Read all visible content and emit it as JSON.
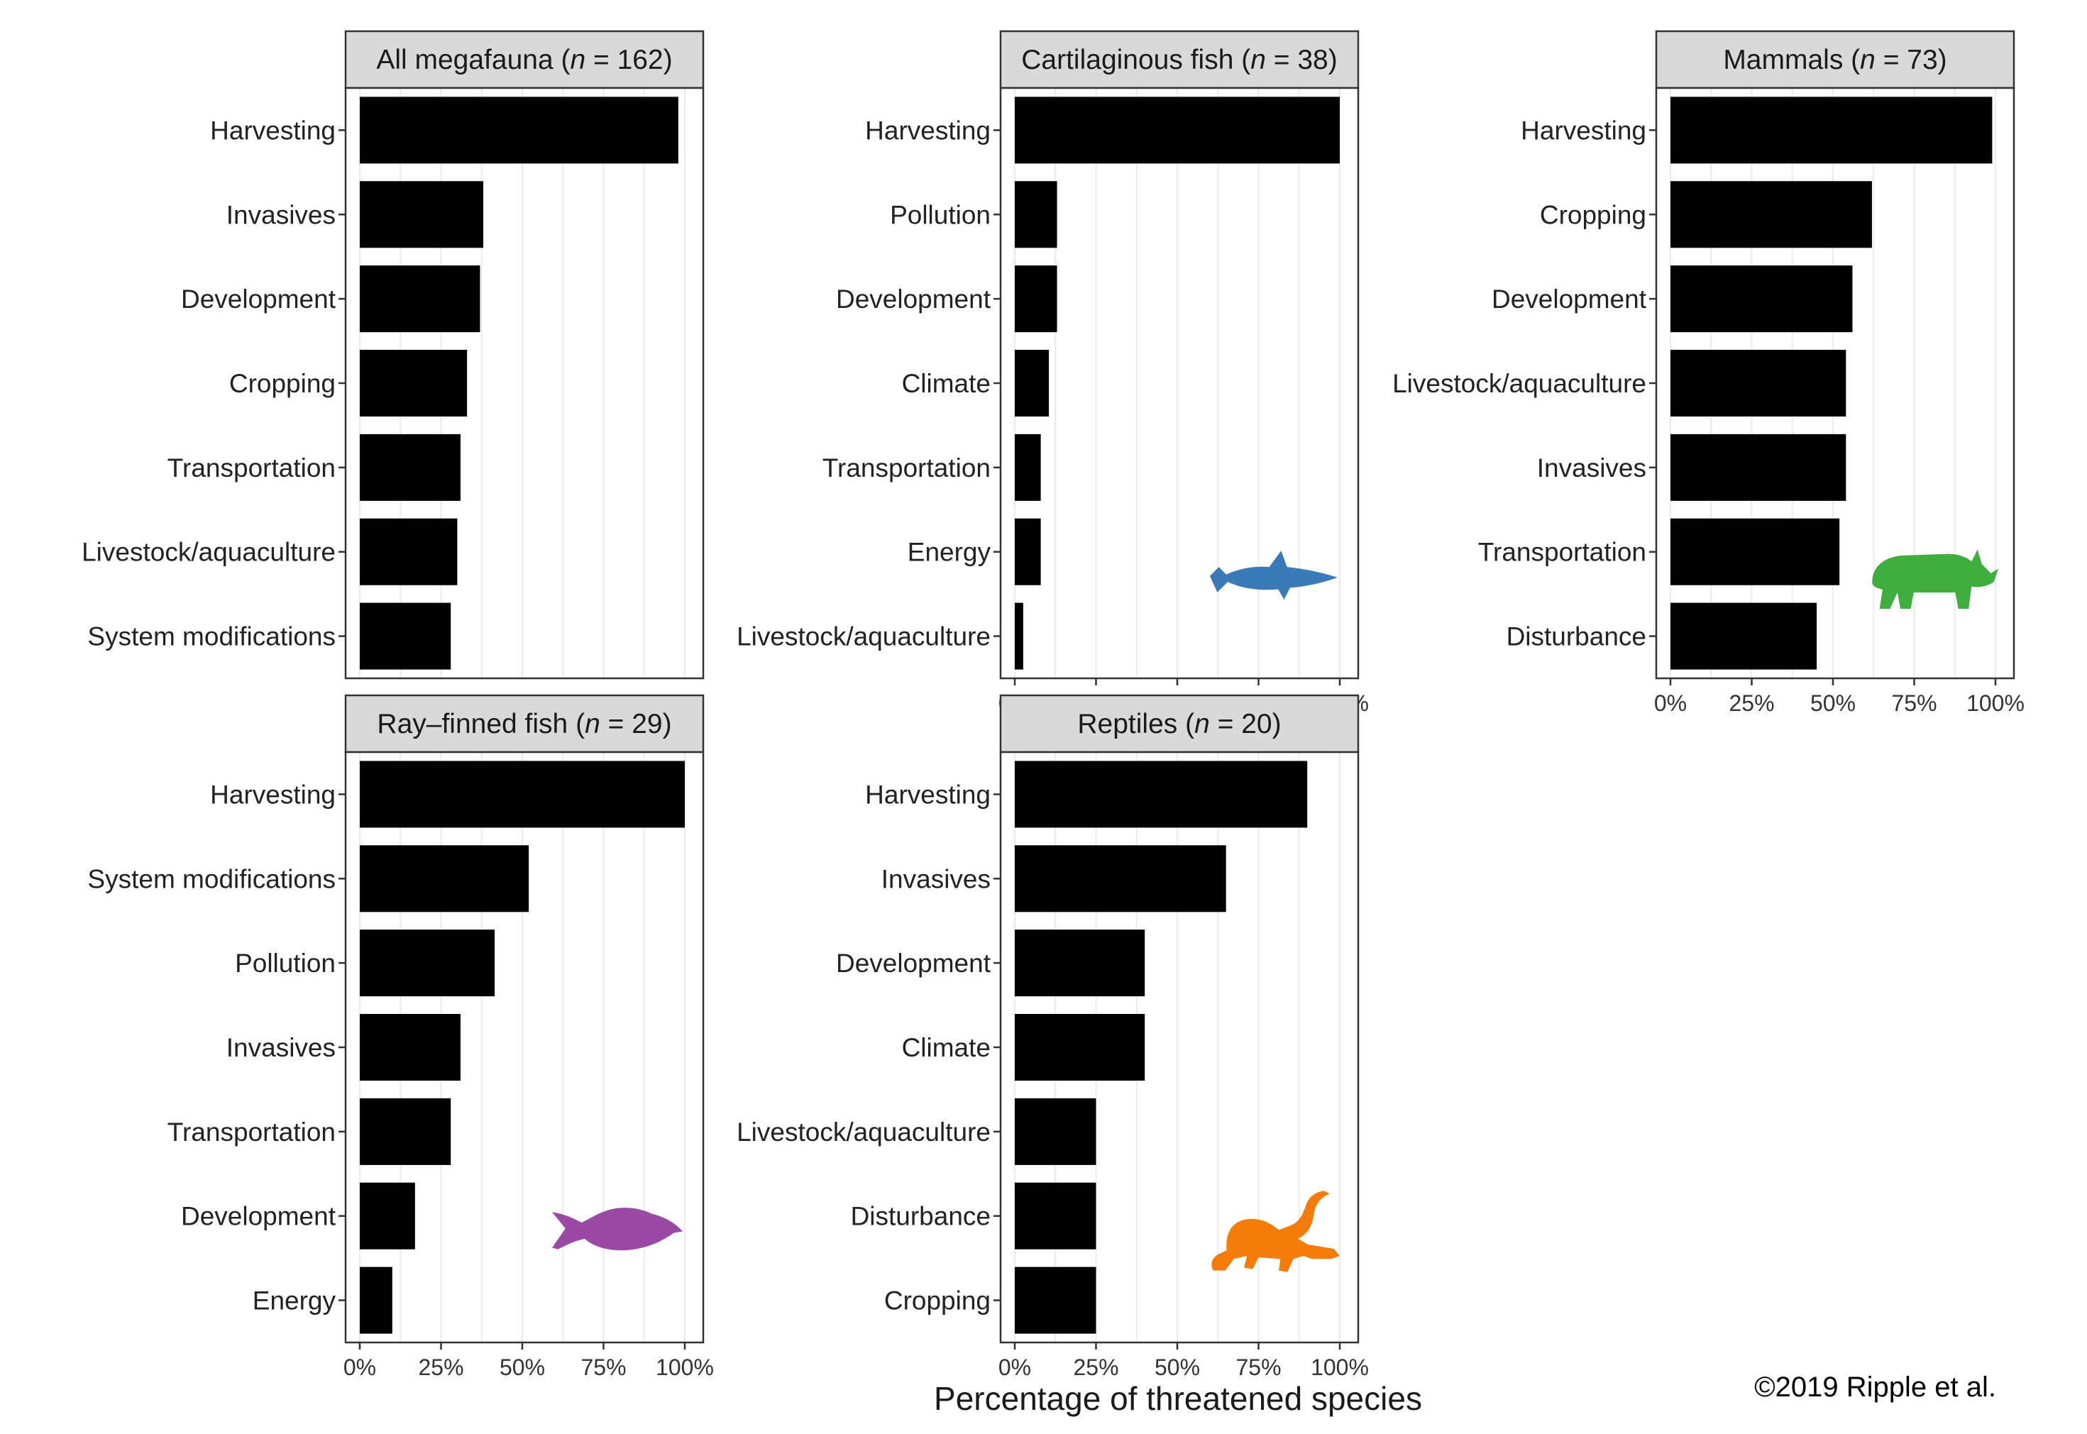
{
  "figure": {
    "x_axis_title": "Percentage of threatened species",
    "credit": "©2019 Ripple et al.",
    "x_tick_labels": [
      "0%",
      "25%",
      "50%",
      "75%",
      "100%"
    ]
  },
  "chart_data": [
    {
      "type": "bar",
      "orientation": "horizontal",
      "title_prefix": "All megafauna (",
      "title_n_symbol": "n",
      "title_suffix": " = 162)",
      "categories": [
        "Harvesting",
        "Invasives",
        "Development",
        "Cropping",
        "Transportation",
        "Livestock/aquaculture",
        "System modifications"
      ],
      "values": [
        98,
        38,
        37,
        33,
        31,
        30,
        28
      ],
      "xlim": [
        0,
        100
      ],
      "x_tick_labels_shown": false,
      "silhouette": null
    },
    {
      "type": "bar",
      "orientation": "horizontal",
      "title_prefix": "Cartilaginous fish (",
      "title_n_symbol": "n",
      "title_suffix": " = 38)",
      "categories": [
        "Harvesting",
        "Pollution",
        "Development",
        "Climate",
        "Transportation",
        "Energy",
        "Livestock/aquaculture"
      ],
      "values": [
        100,
        13,
        13,
        10.5,
        8,
        8,
        2.6
      ],
      "xlim": [
        0,
        100
      ],
      "x_tick_labels_shown": true,
      "silhouette": {
        "icon": "shark-icon",
        "color": "#3a7ab8"
      }
    },
    {
      "type": "bar",
      "orientation": "horizontal",
      "title_prefix": "Mammals (",
      "title_n_symbol": "n",
      "title_suffix": " = 73)",
      "categories": [
        "Harvesting",
        "Cropping",
        "Development",
        "Livestock/aquaculture",
        "Invasives",
        "Transportation",
        "Disturbance"
      ],
      "values": [
        99,
        62,
        56,
        54,
        54,
        52,
        45
      ],
      "xlim": [
        0,
        100
      ],
      "x_tick_labels_shown": true,
      "silhouette": {
        "icon": "rhino-icon",
        "color": "#3fae3f"
      }
    },
    {
      "type": "bar",
      "orientation": "horizontal",
      "title_prefix": "Ray–finned fish (",
      "title_n_symbol": "n",
      "title_suffix": " = 29)",
      "categories": [
        "Harvesting",
        "System modifications",
        "Pollution",
        "Invasives",
        "Transportation",
        "Development",
        "Energy"
      ],
      "values": [
        100,
        52,
        41.5,
        31,
        28,
        17,
        10
      ],
      "xlim": [
        0,
        100
      ],
      "x_tick_labels_shown": true,
      "silhouette": {
        "icon": "fish-icon",
        "color": "#9a4aa4"
      }
    },
    {
      "type": "bar",
      "orientation": "horizontal",
      "title_prefix": "Reptiles (",
      "title_n_symbol": "n",
      "title_suffix": " = 20)",
      "categories": [
        "Harvesting",
        "Invasives",
        "Development",
        "Climate",
        "Livestock/aquaculture",
        "Disturbance",
        "Cropping"
      ],
      "values": [
        90,
        65,
        40,
        40,
        25,
        25,
        25
      ],
      "xlim": [
        0,
        100
      ],
      "x_tick_labels_shown": true,
      "silhouette": {
        "icon": "crocodile-icon",
        "color": "#f47c0a"
      }
    }
  ]
}
